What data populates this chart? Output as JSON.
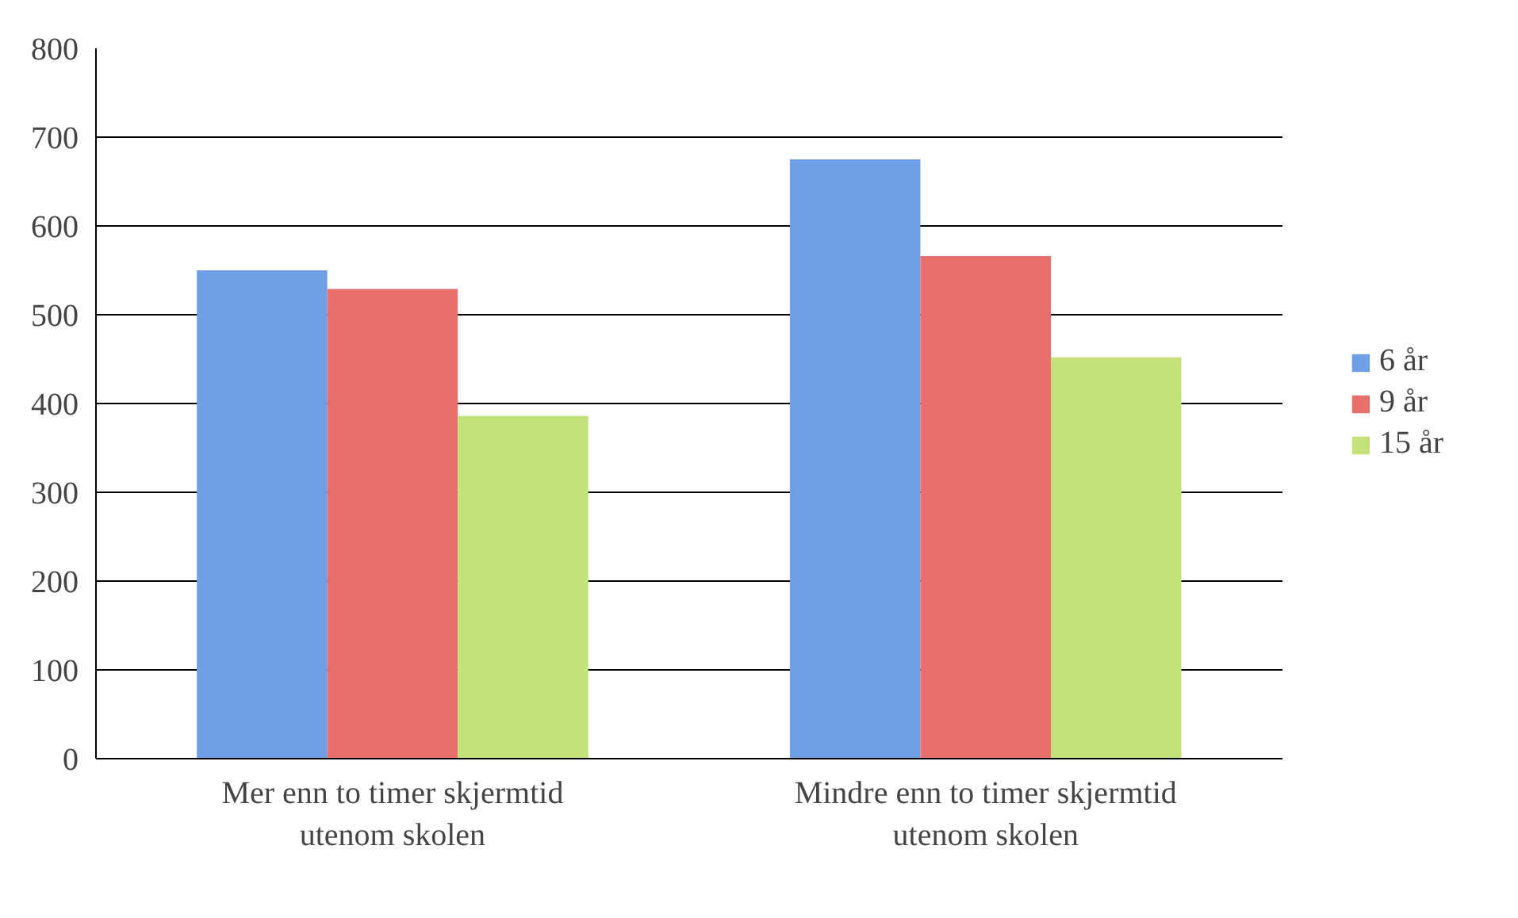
{
  "chart_data": {
    "type": "bar",
    "categories": [
      "Mer enn to timer skjermtid utenom skolen",
      "Mindre enn to timer skjermtid utenom skolen"
    ],
    "series": [
      {
        "name": "6 år",
        "color": "#6f9fe6",
        "values": [
          550,
          675
        ]
      },
      {
        "name": "9 år",
        "color": "#e8706c",
        "values": [
          529,
          566
        ]
      },
      {
        "name": "15 år",
        "color": "#c3e27a",
        "values": [
          386,
          452
        ]
      }
    ],
    "ylim": [
      0,
      800
    ],
    "yticks": [
      0,
      100,
      200,
      300,
      400,
      500,
      600,
      700,
      800
    ],
    "grid": "y",
    "legend": "right"
  }
}
